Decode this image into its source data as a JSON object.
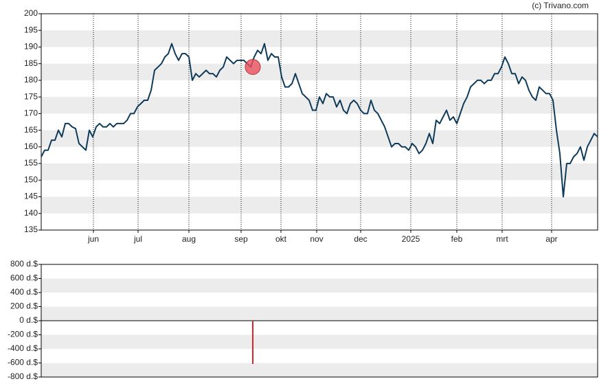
{
  "chart_data": [
    {
      "type": "line",
      "source": "(c) Trivano.com",
      "color": "#0e3a5a",
      "grid": "bands",
      "values": [
        157,
        159,
        159,
        162,
        162,
        165,
        163,
        167,
        167,
        166,
        165.5,
        161,
        160,
        159,
        165,
        163,
        166,
        167,
        166,
        166,
        167,
        166,
        167,
        167,
        167,
        168,
        170,
        170,
        172,
        173,
        174,
        174,
        177,
        183,
        184,
        185,
        187,
        188,
        191,
        188,
        186,
        188,
        188,
        187,
        180,
        182,
        181,
        182,
        183,
        182,
        182,
        181,
        183,
        184,
        187,
        186,
        185,
        186,
        186,
        186,
        185,
        184,
        187,
        189,
        188,
        191,
        186,
        188,
        187,
        187,
        181,
        178,
        178,
        179,
        182,
        179,
        176,
        175,
        174,
        171,
        171,
        175,
        173,
        176,
        175,
        175,
        172,
        174,
        171,
        170,
        173,
        174,
        173,
        171,
        170,
        170,
        174,
        171,
        170,
        168,
        166,
        163,
        160,
        161,
        161,
        160,
        160,
        159,
        161,
        160,
        158,
        159,
        161,
        164,
        161,
        168,
        167,
        169,
        171,
        168,
        169,
        167,
        170,
        173,
        175,
        178,
        179,
        180,
        180,
        179,
        180,
        180,
        182,
        182,
        184,
        187,
        185,
        182,
        182,
        179,
        181,
        180,
        177,
        175,
        174,
        178,
        177,
        176,
        176,
        174,
        165,
        158,
        145,
        155,
        155,
        157,
        158,
        160,
        156,
        160,
        162,
        164,
        163
      ],
      "xlim": [
        0,
        162
      ],
      "xticks": [
        {
          "value": 15.2,
          "label": "jun"
        },
        {
          "value": 28.2,
          "label": "jul"
        },
        {
          "value": 43,
          "label": "aug"
        },
        {
          "value": 58.2,
          "label": "sep"
        },
        {
          "value": 69.8,
          "label": "okt"
        },
        {
          "value": 80.2,
          "label": "nov"
        },
        {
          "value": 93,
          "label": "dec"
        },
        {
          "value": 107.6,
          "label": "2025"
        },
        {
          "value": 121,
          "label": "feb"
        },
        {
          "value": 134.2,
          "label": "mrt"
        },
        {
          "value": 148.6,
          "label": "apr"
        }
      ],
      "ylim": [
        135,
        200
      ],
      "yticks": [
        135,
        140,
        145,
        150,
        155,
        160,
        165,
        170,
        175,
        180,
        185,
        190,
        195,
        200
      ],
      "markers": [
        {
          "x": 61.6,
          "y": 184,
          "color": "#e8505b"
        }
      ]
    },
    {
      "type": "bar",
      "color": "#e0202c",
      "grid": "bands",
      "x": [
        61.6
      ],
      "values": [
        -615
      ],
      "xlim": [
        0,
        162
      ],
      "ylim": [
        -800,
        800
      ],
      "yticks": [
        {
          "value": -800,
          "label": "-800 d.$"
        },
        {
          "value": -600,
          "label": "-600 d.$"
        },
        {
          "value": -400,
          "label": "-400 d.$"
        },
        {
          "value": -200,
          "label": "-200 d.$"
        },
        {
          "value": 0,
          "label": "0 d.$"
        },
        {
          "value": 200,
          "label": "200 d.$"
        },
        {
          "value": 400,
          "label": "400 d.$"
        },
        {
          "value": 600,
          "label": "600 d.$"
        },
        {
          "value": 800,
          "label": "800 d.$"
        }
      ]
    }
  ]
}
